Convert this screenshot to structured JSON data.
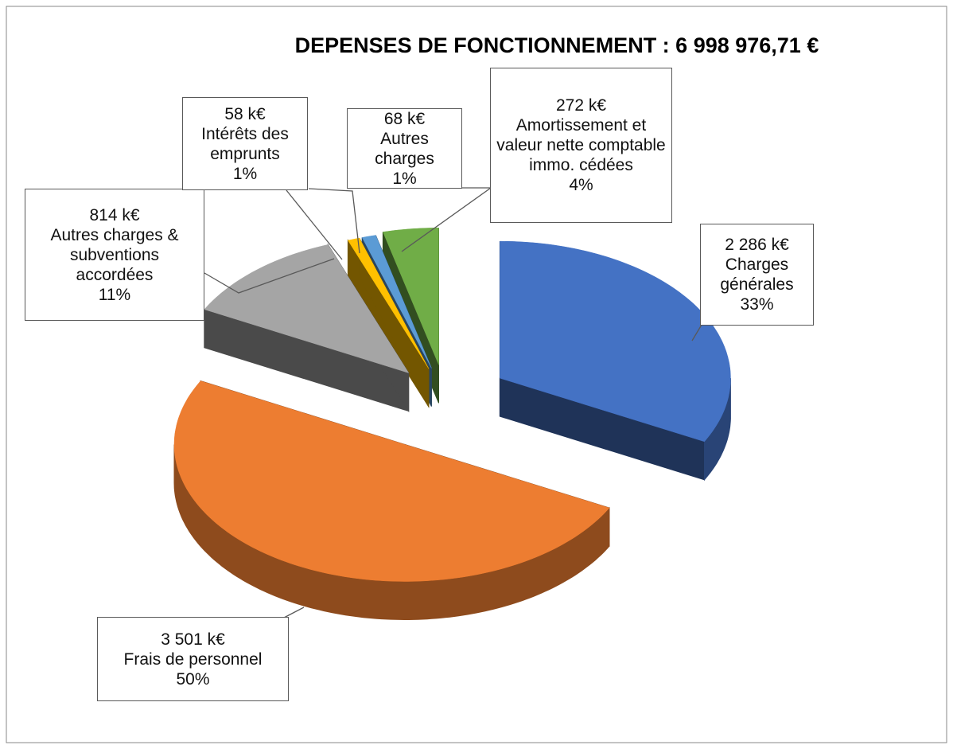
{
  "chart_data": {
    "type": "pie3d",
    "title": "DEPENSES DE FONCTIONNEMENT : 6 998 976,71 €",
    "categories": [
      "Charges générales",
      "Frais de personnel",
      "Autres charges & subventions accordées",
      "Intérêts des emprunts",
      "Autres charges",
      "Amortissement et valeur nette comptable immo. cédées"
    ],
    "values": [
      2286,
      3501,
      814,
      58,
      68,
      272
    ],
    "value_labels": [
      "2 286 k€",
      "3 501 k€",
      "814 k€",
      "58 k€",
      "68 k€",
      "272 k€"
    ],
    "percents": [
      33,
      50,
      11,
      1,
      1,
      4
    ],
    "percent_labels": [
      "33%",
      "50%",
      "11%",
      "1%",
      "1%",
      "4%"
    ],
    "colors": [
      "#4472c4",
      "#ed7d31",
      "#a5a5a5",
      "#ffc000",
      "#5b9bd5",
      "#70ad47"
    ]
  }
}
